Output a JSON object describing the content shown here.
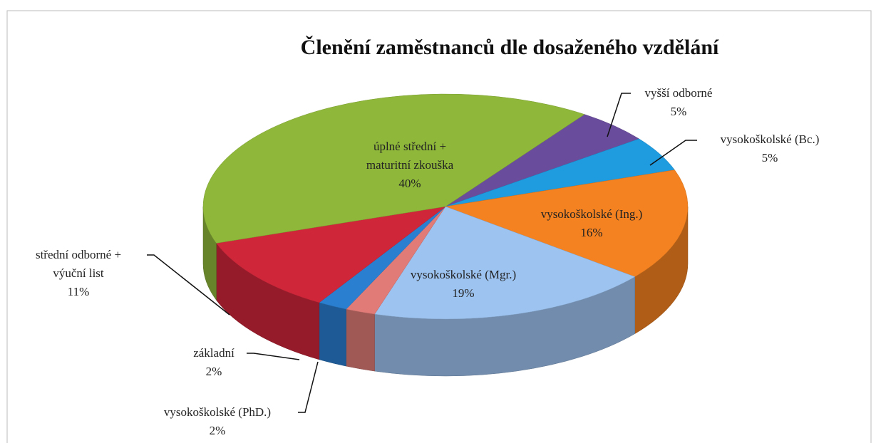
{
  "chart_data": {
    "type": "pie3d",
    "title": "Členění zaměstnanců dle dosaženého vzdělání",
    "categories": [
      "vyšší odborné",
      "vysokoškolské (Bc.)",
      "vysokoškolské (Ing.)",
      "vysokoškolské (Mgr.)",
      "vysokoškolské (PhD.)",
      "základní",
      "střední odborné +\nvýuční list",
      "úplné střední +\nmaturitní zkouška"
    ],
    "values": [
      5,
      5,
      16,
      19,
      2,
      2,
      11,
      40
    ],
    "value_labels": [
      "5%",
      "5%",
      "16%",
      "19%",
      "2%",
      "2%",
      "11%",
      "40%"
    ],
    "colors": [
      "#6a4c9c",
      "#1f9be0",
      "#f58220",
      "#9dc3f0",
      "#e07b78",
      "#2a7fd0",
      "#d0263a",
      "#8fb83a"
    ]
  }
}
